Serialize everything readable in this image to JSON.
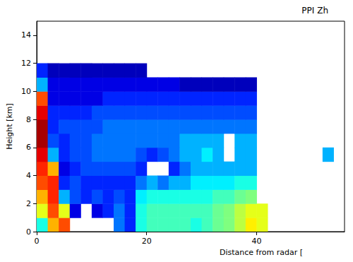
{
  "chart_data": {
    "type": "heatmap",
    "title": "PPI Zh",
    "xlabel": "Distance from radar [",
    "ylabel": "Height [km]",
    "xlim": [
      0,
      56
    ],
    "ylim": [
      0,
      15
    ],
    "xticks": [
      0,
      20,
      40
    ],
    "yticks": [
      0,
      2,
      4,
      6,
      8,
      10,
      12,
      14
    ],
    "zlim": [
      0,
      50
    ],
    "x": [
      1,
      3,
      5,
      7,
      9,
      11,
      13,
      15,
      17,
      19,
      21,
      23,
      25,
      27,
      29,
      31,
      33,
      35,
      37,
      39,
      41,
      43,
      45,
      47,
      49,
      51,
      53,
      55
    ],
    "y": [
      0.5,
      1.5,
      2.5,
      3.5,
      4.5,
      5.5,
      6.5,
      7.5,
      8.5,
      9.5,
      10.5,
      11.5
    ],
    "cells": [
      [
        20,
        35,
        40,
        null,
        null,
        null,
        null,
        12,
        8,
        20,
        22,
        22,
        22,
        22,
        20,
        22,
        24,
        25,
        28,
        32,
        30,
        null,
        null,
        null,
        null,
        null,
        null,
        null
      ],
      [
        30,
        40,
        30,
        5,
        null,
        5,
        8,
        12,
        8,
        20,
        22,
        22,
        22,
        22,
        22,
        22,
        24,
        25,
        28,
        30,
        30,
        null,
        null,
        null,
        null,
        null,
        null,
        null
      ],
      [
        35,
        42,
        15,
        10,
        8,
        10,
        8,
        10,
        8,
        18,
        20,
        20,
        20,
        20,
        20,
        20,
        22,
        22,
        24,
        25,
        null,
        null,
        null,
        null,
        null,
        null,
        null,
        null
      ],
      [
        40,
        42,
        8,
        10,
        8,
        8,
        8,
        8,
        8,
        12,
        15,
        12,
        15,
        15,
        18,
        18,
        18,
        18,
        20,
        20,
        null,
        null,
        null,
        null,
        null,
        null,
        null,
        null
      ],
      [
        42,
        35,
        5,
        8,
        10,
        10,
        10,
        10,
        10,
        8,
        null,
        null,
        8,
        12,
        15,
        15,
        15,
        15,
        15,
        15,
        null,
        null,
        null,
        null,
        null,
        null,
        null,
        null
      ],
      [
        45,
        15,
        8,
        10,
        10,
        12,
        12,
        12,
        12,
        10,
        8,
        10,
        12,
        15,
        15,
        18,
        15,
        null,
        15,
        15,
        null,
        null,
        null,
        null,
        null,
        null,
        15,
        null
      ],
      [
        48,
        10,
        8,
        10,
        10,
        12,
        12,
        12,
        12,
        12,
        12,
        12,
        12,
        15,
        15,
        15,
        15,
        null,
        15,
        15,
        null,
        null,
        null,
        null,
        null,
        null,
        null,
        null
      ],
      [
        48,
        8,
        10,
        10,
        10,
        10,
        12,
        12,
        12,
        12,
        12,
        12,
        12,
        12,
        12,
        12,
        12,
        12,
        12,
        12,
        null,
        null,
        null,
        null,
        null,
        null,
        null,
        null
      ],
      [
        45,
        8,
        8,
        8,
        8,
        10,
        10,
        10,
        10,
        10,
        10,
        10,
        10,
        10,
        10,
        10,
        10,
        10,
        10,
        10,
        null,
        null,
        null,
        null,
        null,
        null,
        null,
        null
      ],
      [
        40,
        5,
        5,
        5,
        5,
        5,
        8,
        8,
        8,
        8,
        8,
        8,
        8,
        8,
        8,
        8,
        8,
        8,
        8,
        8,
        null,
        null,
        null,
        null,
        null,
        null,
        null,
        null
      ],
      [
        15,
        5,
        5,
        5,
        5,
        5,
        5,
        5,
        5,
        5,
        5,
        5,
        5,
        3,
        3,
        3,
        3,
        3,
        3,
        3,
        null,
        null,
        null,
        null,
        null,
        null,
        null,
        null
      ],
      [
        8,
        3,
        3,
        3,
        3,
        3,
        3,
        3,
        3,
        3,
        null,
        null,
        null,
        null,
        null,
        null,
        null,
        null,
        null,
        null,
        null,
        null,
        null,
        null,
        null,
        null,
        null,
        null
      ]
    ]
  }
}
